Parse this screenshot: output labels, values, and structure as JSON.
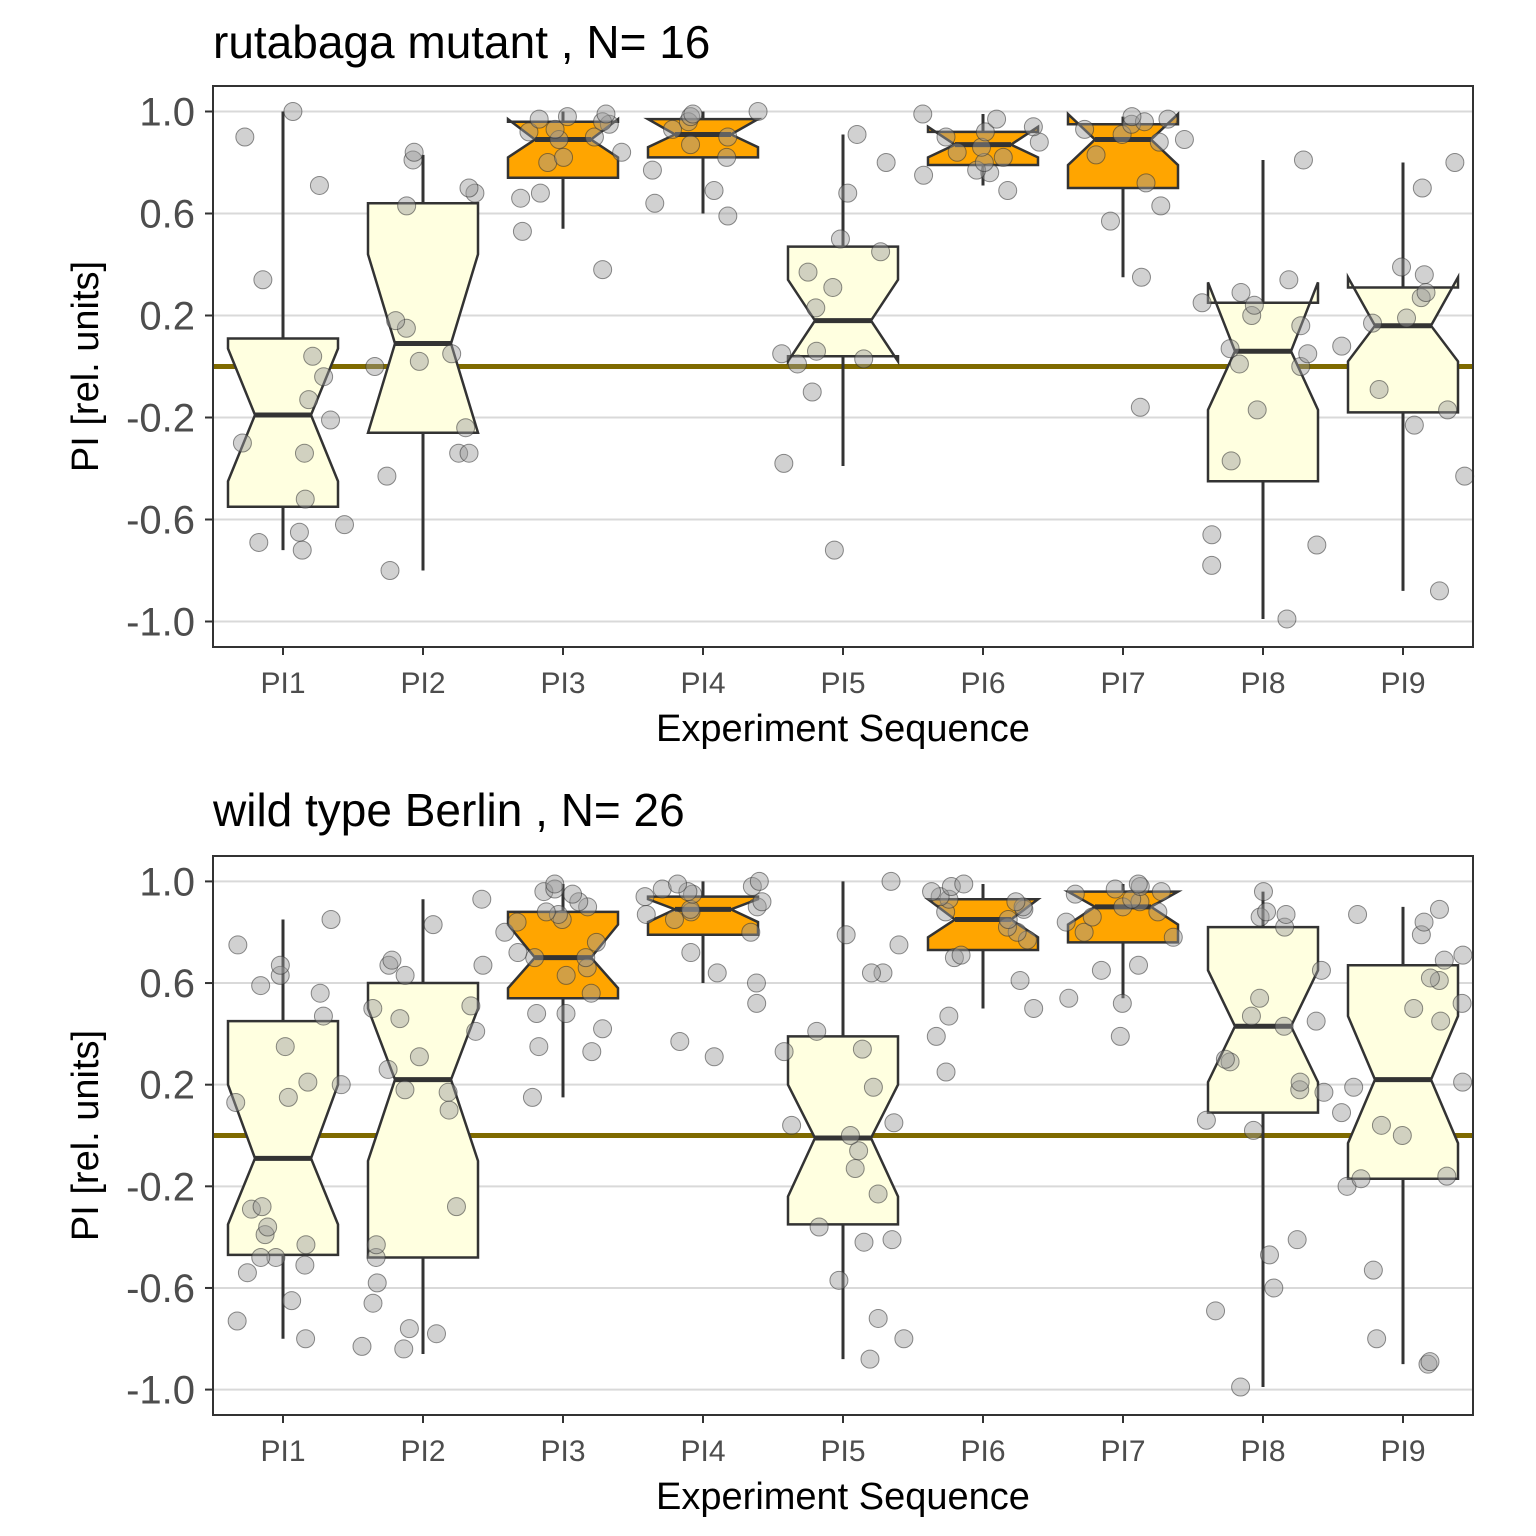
{
  "chart_data": [
    {
      "type": "boxplot",
      "title": "rutabaga mutant , N= 16",
      "xlabel": "Experiment Sequence",
      "ylabel": "PI [rel. units]",
      "ylim": [
        -1.1,
        1.1
      ],
      "yticks": [
        1.0,
        0.6,
        0.2,
        -0.2,
        -0.6,
        -1.0
      ],
      "ytick_labels": [
        "1.0",
        "0.6",
        "0.2",
        "-0.2",
        "-0.6",
        "-1.0"
      ],
      "categories": [
        "PI1",
        "PI2",
        "PI3",
        "PI4",
        "PI5",
        "PI6",
        "PI7",
        "PI8",
        "PI9"
      ],
      "reference_line": 0.0,
      "grid": true,
      "colors": {
        "highlight": "#ffa500",
        "normal": "#ffffe0",
        "reference": "#7f6a00",
        "points": "#999999"
      },
      "boxes": [
        {
          "category": "PI1",
          "fill": "normal",
          "q1": -0.55,
          "median": -0.19,
          "q3": 0.11,
          "notch_low": -0.45,
          "notch_high": 0.07,
          "whisker_low": -0.72,
          "whisker_high": 1.0
        },
        {
          "category": "PI2",
          "fill": "normal",
          "q1": -0.26,
          "median": 0.09,
          "q3": 0.64,
          "notch_low": -0.26,
          "notch_high": 0.44,
          "whisker_low": -0.8,
          "whisker_high": 0.83
        },
        {
          "category": "PI3",
          "fill": "highlight",
          "q1": 0.74,
          "median": 0.89,
          "q3": 0.96,
          "notch_low": 0.82,
          "notch_high": 0.97,
          "whisker_low": 0.54,
          "whisker_high": 1.0
        },
        {
          "category": "PI4",
          "fill": "highlight",
          "q1": 0.82,
          "median": 0.91,
          "q3": 0.97,
          "notch_low": 0.86,
          "notch_high": 0.97,
          "whisker_low": 0.6,
          "whisker_high": 1.0
        },
        {
          "category": "PI5",
          "fill": "normal",
          "q1": 0.04,
          "median": 0.18,
          "q3": 0.47,
          "notch_low": 0.02,
          "notch_high": 0.34,
          "whisker_low": -0.39,
          "whisker_high": 0.91
        },
        {
          "category": "PI6",
          "fill": "highlight",
          "q1": 0.79,
          "median": 0.87,
          "q3": 0.92,
          "notch_low": 0.82,
          "notch_high": 0.94,
          "whisker_low": 0.71,
          "whisker_high": 0.99
        },
        {
          "category": "PI7",
          "fill": "highlight",
          "q1": 0.7,
          "median": 0.89,
          "q3": 0.95,
          "notch_low": 0.79,
          "notch_high": 0.99,
          "whisker_low": 0.35,
          "whisker_high": 0.98
        },
        {
          "category": "PI8",
          "fill": "normal",
          "q1": -0.45,
          "median": 0.06,
          "q3": 0.25,
          "notch_low": -0.17,
          "notch_high": 0.33,
          "whisker_low": -0.99,
          "whisker_high": 0.81
        },
        {
          "category": "PI9",
          "fill": "normal",
          "q1": -0.18,
          "median": 0.16,
          "q3": 0.31,
          "notch_low": 0.02,
          "notch_high": 0.35,
          "whisker_low": -0.88,
          "whisker_high": 0.8
        }
      ],
      "points": [
        [
          -0.72,
          -0.69,
          -0.65,
          -0.62,
          -0.52,
          -0.34,
          -0.3,
          -0.21,
          -0.13,
          -0.04,
          0.04,
          0.34,
          0.71,
          0.9,
          1.0
        ],
        [
          -0.8,
          -0.43,
          -0.34,
          -0.34,
          -0.24,
          0.0,
          0.02,
          0.05,
          0.15,
          0.18,
          0.63,
          0.68,
          0.7,
          0.81,
          0.84
        ],
        [
          0.38,
          0.53,
          0.66,
          0.68,
          0.8,
          0.82,
          0.84,
          0.89,
          0.9,
          0.92,
          0.93,
          0.95,
          0.96,
          0.97,
          0.98,
          0.99
        ],
        [
          0.59,
          0.64,
          0.69,
          0.77,
          0.82,
          0.87,
          0.9,
          0.93,
          0.96,
          0.98,
          0.99,
          1.0
        ],
        [
          -0.72,
          -0.38,
          -0.1,
          0.01,
          0.03,
          0.05,
          0.06,
          0.23,
          0.31,
          0.37,
          0.45,
          0.5,
          0.68,
          0.8,
          0.91
        ],
        [
          0.69,
          0.75,
          0.76,
          0.77,
          0.8,
          0.82,
          0.84,
          0.86,
          0.88,
          0.9,
          0.92,
          0.94,
          0.97,
          0.99
        ],
        [
          -0.16,
          0.35,
          0.57,
          0.63,
          0.72,
          0.83,
          0.88,
          0.89,
          0.91,
          0.93,
          0.95,
          0.96,
          0.97,
          0.98
        ],
        [
          -0.99,
          -0.78,
          -0.7,
          -0.66,
          -0.37,
          -0.17,
          0.0,
          0.01,
          0.05,
          0.07,
          0.16,
          0.2,
          0.24,
          0.25,
          0.29,
          0.34,
          0.81
        ],
        [
          -0.88,
          -0.43,
          -0.23,
          -0.17,
          -0.09,
          0.08,
          0.17,
          0.19,
          0.27,
          0.29,
          0.36,
          0.39,
          0.7,
          0.8
        ]
      ]
    },
    {
      "type": "boxplot",
      "title": "wild type Berlin , N= 26",
      "xlabel": "Experiment Sequence",
      "ylabel": "PI [rel. units]",
      "ylim": [
        -1.1,
        1.1
      ],
      "yticks": [
        1.0,
        0.6,
        0.2,
        -0.2,
        -0.6,
        -1.0
      ],
      "ytick_labels": [
        "1.0",
        "0.6",
        "0.2",
        "-0.2",
        "-0.6",
        "-1.0"
      ],
      "categories": [
        "PI1",
        "PI2",
        "PI3",
        "PI4",
        "PI5",
        "PI6",
        "PI7",
        "PI8",
        "PI9"
      ],
      "reference_line": 0.0,
      "grid": true,
      "colors": {
        "highlight": "#ffa500",
        "normal": "#ffffe0",
        "reference": "#7f6a00",
        "points": "#999999"
      },
      "boxes": [
        {
          "category": "PI1",
          "fill": "normal",
          "q1": -0.47,
          "median": -0.09,
          "q3": 0.45,
          "notch_low": -0.35,
          "notch_high": 0.2,
          "whisker_low": -0.8,
          "whisker_high": 0.85
        },
        {
          "category": "PI2",
          "fill": "normal",
          "q1": -0.48,
          "median": 0.22,
          "q3": 0.6,
          "notch_low": -0.1,
          "notch_high": 0.5,
          "whisker_low": -0.86,
          "whisker_high": 0.93
        },
        {
          "category": "PI3",
          "fill": "highlight",
          "q1": 0.54,
          "median": 0.7,
          "q3": 0.88,
          "notch_low": 0.58,
          "notch_high": 0.83,
          "whisker_low": 0.15,
          "whisker_high": 0.99
        },
        {
          "category": "PI4",
          "fill": "highlight",
          "q1": 0.79,
          "median": 0.89,
          "q3": 0.94,
          "notch_low": 0.84,
          "notch_high": 0.93,
          "whisker_low": 0.6,
          "whisker_high": 1.0
        },
        {
          "category": "PI5",
          "fill": "normal",
          "q1": -0.35,
          "median": -0.01,
          "q3": 0.39,
          "notch_low": -0.24,
          "notch_high": 0.2,
          "whisker_low": -0.88,
          "whisker_high": 1.0
        },
        {
          "category": "PI6",
          "fill": "highlight",
          "q1": 0.73,
          "median": 0.85,
          "q3": 0.93,
          "notch_low": 0.78,
          "notch_high": 0.93,
          "whisker_low": 0.5,
          "whisker_high": 0.99
        },
        {
          "category": "PI7",
          "fill": "highlight",
          "q1": 0.76,
          "median": 0.9,
          "q3": 0.96,
          "notch_low": 0.83,
          "notch_high": 0.96,
          "whisker_low": 0.54,
          "whisker_high": 0.99
        },
        {
          "category": "PI8",
          "fill": "normal",
          "q1": 0.09,
          "median": 0.43,
          "q3": 0.82,
          "notch_low": 0.21,
          "notch_high": 0.65,
          "whisker_low": -0.99,
          "whisker_high": 0.96
        },
        {
          "category": "PI9",
          "fill": "normal",
          "q1": -0.17,
          "median": 0.22,
          "q3": 0.67,
          "notch_low": -0.03,
          "notch_high": 0.47,
          "whisker_low": -0.9,
          "whisker_high": 0.9
        }
      ],
      "points": [
        [
          -0.8,
          -0.73,
          -0.65,
          -0.54,
          -0.51,
          -0.48,
          -0.48,
          -0.43,
          -0.39,
          -0.36,
          -0.29,
          -0.28,
          0.13,
          0.15,
          0.2,
          0.21,
          0.35,
          0.47,
          0.56,
          0.59,
          0.63,
          0.67,
          0.75,
          0.85
        ],
        [
          -0.84,
          -0.83,
          -0.78,
          -0.76,
          -0.66,
          -0.58,
          -0.48,
          -0.43,
          -0.28,
          0.1,
          0.17,
          0.18,
          0.26,
          0.31,
          0.41,
          0.46,
          0.5,
          0.51,
          0.63,
          0.67,
          0.67,
          0.69,
          0.83,
          0.93
        ],
        [
          0.15,
          0.33,
          0.35,
          0.42,
          0.48,
          0.48,
          0.56,
          0.63,
          0.66,
          0.7,
          0.7,
          0.72,
          0.76,
          0.8,
          0.84,
          0.85,
          0.87,
          0.88,
          0.9,
          0.92,
          0.95,
          0.96,
          0.97,
          0.99
        ],
        [
          0.31,
          0.37,
          0.52,
          0.6,
          0.64,
          0.72,
          0.8,
          0.85,
          0.87,
          0.88,
          0.89,
          0.9,
          0.92,
          0.94,
          0.95,
          0.96,
          0.97,
          0.98,
          0.99,
          1.0
        ],
        [
          -0.88,
          -0.8,
          -0.72,
          -0.57,
          -0.42,
          -0.41,
          -0.36,
          -0.23,
          -0.13,
          -0.06,
          0.0,
          0.04,
          0.05,
          0.19,
          0.33,
          0.34,
          0.41,
          0.64,
          0.64,
          0.75,
          0.79,
          1.0
        ],
        [
          0.25,
          0.39,
          0.47,
          0.5,
          0.61,
          0.7,
          0.71,
          0.77,
          0.8,
          0.82,
          0.85,
          0.88,
          0.89,
          0.9,
          0.92,
          0.93,
          0.94,
          0.96,
          0.98,
          0.99
        ],
        [
          0.39,
          0.52,
          0.54,
          0.65,
          0.67,
          0.78,
          0.8,
          0.84,
          0.86,
          0.88,
          0.9,
          0.92,
          0.93,
          0.95,
          0.96,
          0.97,
          0.98,
          0.99
        ],
        [
          -0.99,
          -0.69,
          -0.6,
          -0.47,
          -0.41,
          0.02,
          0.06,
          0.17,
          0.18,
          0.21,
          0.29,
          0.3,
          0.43,
          0.45,
          0.47,
          0.54,
          0.65,
          0.82,
          0.86,
          0.87,
          0.88,
          0.96
        ],
        [
          -0.9,
          -0.89,
          -0.8,
          -0.53,
          -0.2,
          -0.17,
          -0.16,
          0.0,
          0.04,
          0.09,
          0.19,
          0.21,
          0.45,
          0.5,
          0.52,
          0.61,
          0.62,
          0.69,
          0.71,
          0.79,
          0.84,
          0.87,
          0.89
        ]
      ]
    }
  ]
}
